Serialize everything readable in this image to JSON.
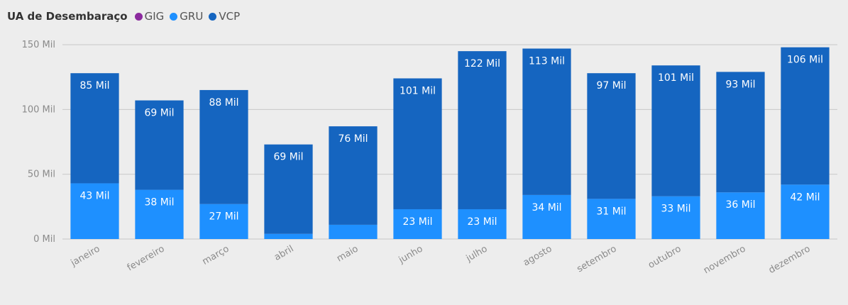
{
  "legend": {
    "title": "UA de Desembaraço",
    "items": [
      {
        "name": "GIG",
        "color": "#8b2a9e"
      },
      {
        "name": "GRU",
        "color": "#1e90ff"
      },
      {
        "name": "VCP",
        "color": "#1565c0"
      }
    ]
  },
  "chart_data": {
    "type": "bar",
    "stacked": true,
    "title": "",
    "xlabel": "",
    "ylabel": "",
    "ylim": [
      0,
      150
    ],
    "yticks": [
      0,
      50,
      100,
      150
    ],
    "ytick_labels": [
      "0 Mil",
      "50 Mil",
      "100 Mil",
      "150 Mil"
    ],
    "grid": true,
    "legend_position": "top-left",
    "categories": [
      "janeiro",
      "fevereiro",
      "março",
      "abril",
      "maio",
      "junho",
      "julho",
      "agosto",
      "setembro",
      "outubro",
      "novembro",
      "dezembro"
    ],
    "series": [
      {
        "name": "GRU",
        "color": "#1e90ff",
        "values": [
          43,
          38,
          27,
          4,
          11,
          23,
          23,
          34,
          31,
          33,
          36,
          42
        ],
        "labels": [
          "43 Mil",
          "38 Mil",
          "27 Mil",
          "",
          "",
          "23 Mil",
          "23 Mil",
          "34 Mil",
          "31 Mil",
          "33 Mil",
          "36 Mil",
          "42 Mil"
        ]
      },
      {
        "name": "VCP",
        "color": "#1565c0",
        "values": [
          85,
          69,
          88,
          69,
          76,
          101,
          122,
          113,
          97,
          101,
          93,
          106
        ],
        "labels": [
          "85 Mil",
          "69 Mil",
          "88 Mil",
          "69 Mil",
          "76 Mil",
          "101 Mil",
          "122 Mil",
          "113 Mil",
          "97 Mil",
          "101 Mil",
          "93 Mil",
          "106 Mil"
        ]
      }
    ]
  }
}
